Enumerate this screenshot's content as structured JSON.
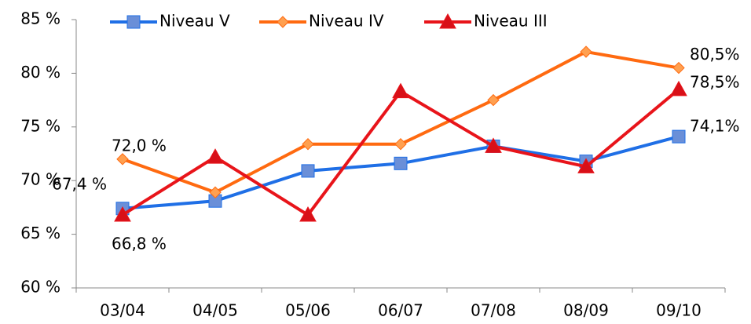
{
  "chart_data": {
    "type": "line",
    "categories": [
      "03/04",
      "04/05",
      "05/06",
      "06/07",
      "07/08",
      "08/09",
      "09/10"
    ],
    "series": [
      {
        "name": "Niveau V",
        "color": "#1f6fe6",
        "marker": "square",
        "marker_color": "#6a8fd8",
        "values": [
          67.4,
          68.1,
          70.9,
          71.6,
          73.2,
          71.8,
          74.1
        ],
        "value_labels": [
          "67,4 %",
          null,
          null,
          null,
          null,
          null,
          "74,1%"
        ]
      },
      {
        "name": "Niveau IV",
        "color": "#ff6a10",
        "marker": "diamond",
        "marker_color": "#ffa050",
        "values": [
          72.0,
          68.9,
          73.4,
          73.4,
          77.5,
          82.0,
          80.5
        ],
        "value_labels": [
          "72,0 %",
          null,
          null,
          null,
          null,
          null,
          "80,5%"
        ]
      },
      {
        "name": "Niveau III",
        "color": "#e8141a",
        "marker": "triangle",
        "marker_color": "#d81018",
        "values": [
          66.8,
          72.2,
          66.8,
          78.3,
          73.2,
          71.3,
          78.5
        ],
        "value_labels": [
          "66,8 %",
          null,
          null,
          null,
          null,
          null,
          "78,5%"
        ]
      }
    ],
    "ylim": [
      60,
      85
    ],
    "yticks": [
      {
        "value": 60,
        "label": "60 %"
      },
      {
        "value": 65,
        "label": "65 %"
      },
      {
        "value": 70,
        "label": "70 %"
      },
      {
        "value": 75,
        "label": "75 %"
      },
      {
        "value": 80,
        "label": "80 %"
      },
      {
        "value": 85,
        "label": "85 %"
      }
    ],
    "legend": "top",
    "grid": false
  }
}
